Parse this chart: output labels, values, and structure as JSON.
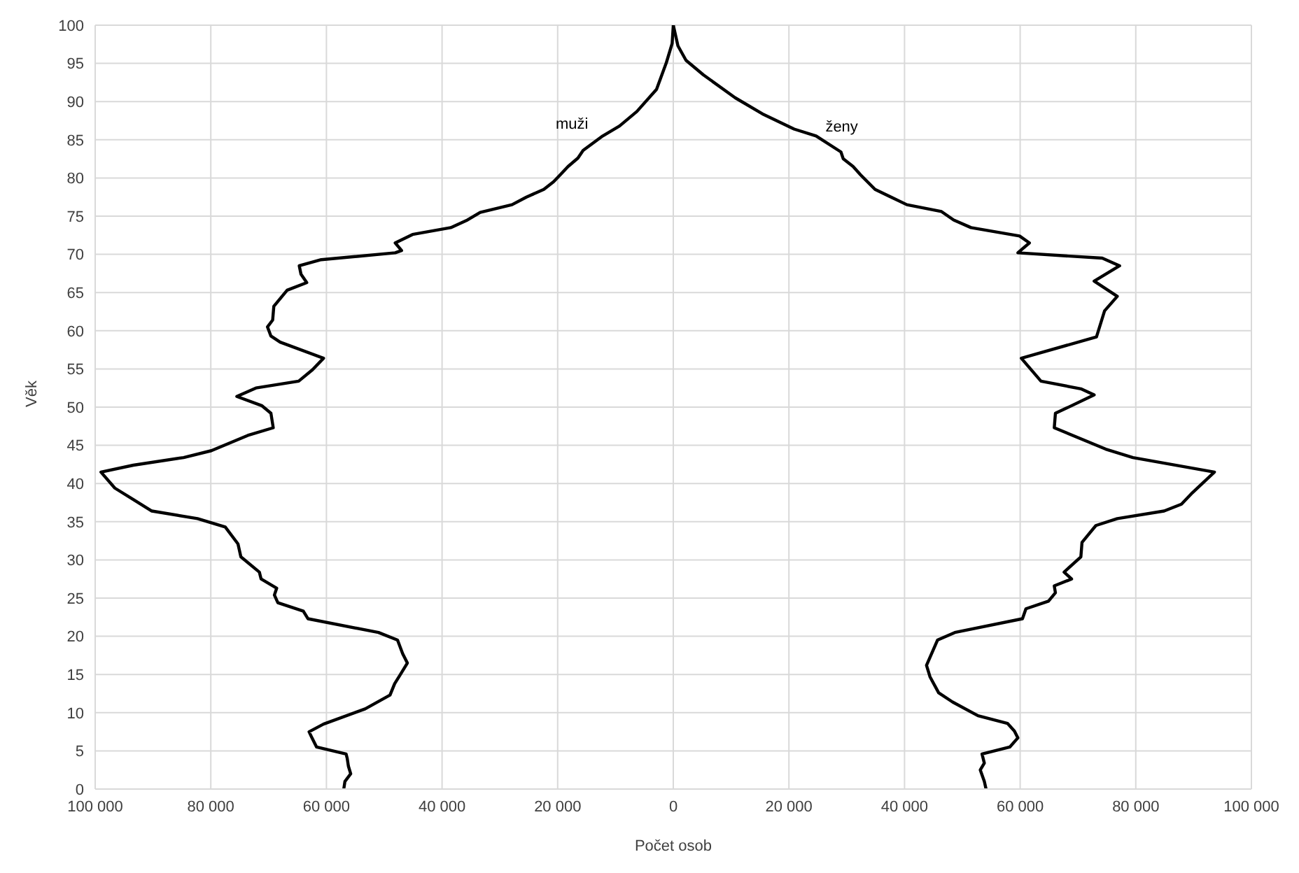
{
  "chart_data": {
    "type": "line",
    "xlabel": "Počet osob",
    "ylabel": "Věk",
    "xlim": [
      -100000,
      100000
    ],
    "xticks": [
      {
        "value": -100000,
        "label": "100 000"
      },
      {
        "value": -80000,
        "label": "80 000"
      },
      {
        "value": -60000,
        "label": "60 000"
      },
      {
        "value": -40000,
        "label": "40 000"
      },
      {
        "value": -20000,
        "label": "20 000"
      },
      0,
      {
        "value": 20000,
        "label": "20 000"
      },
      {
        "value": 40000,
        "label": "40 000"
      },
      {
        "value": 60000,
        "label": "60 000"
      },
      {
        "value": 80000,
        "label": "80 000"
      },
      {
        "value": 100000,
        "label": "100 000"
      }
    ],
    "ylim": [
      0,
      100
    ],
    "yticks": [
      0,
      5,
      10,
      15,
      20,
      25,
      30,
      35,
      40,
      45,
      50,
      55,
      60,
      65,
      70,
      75,
      80,
      85,
      90,
      95,
      100
    ],
    "grid": true,
    "legend": false,
    "marker": "none",
    "line_style": "solid",
    "series": [
      {
        "name": "muži",
        "color": "#000000",
        "x": [
          -57000,
          -56800,
          -55800,
          -56200,
          -56400,
          -56600,
          -61700,
          -62500,
          -63000,
          -60500,
          -53300,
          -49000,
          -48200,
          -47200,
          -46000,
          -46800,
          -47700,
          -51000,
          -63200,
          -64000,
          -68400,
          -69000,
          -68600,
          -71300,
          -71600,
          -74800,
          -75300,
          -77500,
          -82300,
          -90200,
          -93400,
          -96600,
          -99000,
          -93400,
          -84700,
          -79900,
          -73600,
          -69200,
          -69600,
          -71200,
          -75500,
          -72200,
          -64800,
          -62400,
          -60500,
          -68000,
          -69600,
          -70200,
          -69300,
          -69100,
          -66800,
          -63400,
          -64400,
          -64700,
          -60900,
          -48100,
          -47000,
          -48100,
          -45100,
          -38500,
          -35600,
          -33400,
          -27900,
          -25400,
          -22400,
          -20700,
          -18200,
          -16500,
          -15600,
          -12200,
          -9300,
          -6300,
          -2900,
          -1200,
          -200,
          0
        ],
        "values": [
          0,
          1,
          2,
          3,
          4,
          4.6,
          5.5,
          6.7,
          7.5,
          8.5,
          10.5,
          12.3,
          13.8,
          15,
          16.5,
          17.7,
          19.5,
          20.5,
          22.3,
          23.3,
          24.4,
          25.4,
          26.3,
          27.5,
          28.4,
          30.4,
          32.1,
          34.3,
          35.4,
          36.4,
          37.9,
          39.4,
          41.5,
          42.4,
          43.4,
          44.3,
          46.3,
          47.3,
          49.2,
          50.2,
          51.4,
          52.5,
          53.4,
          54.9,
          56.4,
          58.5,
          59.3,
          60.5,
          61.4,
          63.2,
          65.3,
          66.3,
          67.4,
          68.5,
          69.3,
          70.2,
          70.5,
          71.5,
          72.6,
          73.5,
          74.5,
          75.5,
          76.5,
          77.5,
          78.5,
          79.5,
          81.5,
          82.6,
          83.6,
          85.5,
          86.8,
          88.7,
          91.6,
          95.1,
          97.6,
          100
        ]
      },
      {
        "name": "ženy",
        "color": "#000000",
        "x": [
          54100,
          53800,
          53100,
          53800,
          53400,
          58200,
          59600,
          59000,
          57800,
          52700,
          48300,
          45900,
          44400,
          43800,
          45700,
          48700,
          60400,
          61000,
          64900,
          66100,
          65900,
          68900,
          67600,
          70500,
          70700,
          73100,
          76800,
          84900,
          87900,
          89800,
          93600,
          79500,
          74800,
          65900,
          66100,
          68100,
          72800,
          70500,
          63600,
          60200,
          73200,
          74600,
          76800,
          72800,
          77200,
          74200,
          59600,
          61600,
          59900,
          51500,
          48500,
          46400,
          40400,
          34900,
          32400,
          31100,
          29400,
          29000,
          24700,
          20900,
          15400,
          10700,
          5200,
          2200,
          800,
          0
        ],
        "values": [
          0,
          1,
          2.5,
          3.4,
          4.6,
          5.5,
          6.7,
          7.6,
          8.6,
          9.6,
          11.4,
          12.6,
          14.7,
          16.2,
          19.5,
          20.5,
          22.3,
          23.6,
          24.6,
          25.7,
          26.6,
          27.5,
          28.4,
          30.4,
          32.3,
          34.5,
          35.4,
          36.4,
          37.3,
          38.8,
          41.5,
          43.4,
          44.5,
          47.3,
          49.2,
          49.9,
          51.6,
          52.4,
          53.4,
          56.4,
          59.2,
          62.6,
          64.5,
          66.5,
          68.5,
          69.5,
          70.2,
          71.5,
          72.4,
          73.5,
          74.5,
          75.6,
          76.5,
          78.5,
          80.4,
          81.5,
          82.5,
          83.4,
          85.5,
          86.4,
          88.4,
          90.5,
          93.5,
          95.4,
          97.3,
          100
        ]
      }
    ]
  }
}
